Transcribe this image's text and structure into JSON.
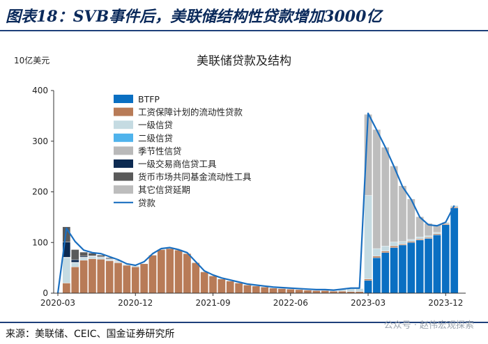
{
  "figure_title": "图表18：SVB事件后，美联储结构性贷款增加3000亿",
  "source": "来源：美联储、CEIC、国金证券研究所",
  "watermark": "公众号 · 赵伟宏观探索",
  "colors": {
    "btfp": "#0a6fc2",
    "ppp": "#b87b57",
    "primary_credit": "#c5dbe2",
    "secondary_credit": "#4fb3ec",
    "seasonal_credit": "#b9b9b9",
    "pdcf": "#0d2b52",
    "mmlf": "#5a5a5a",
    "other_credit_ext": "#bdbdbd",
    "loans_line": "#1a6fc0"
  },
  "chart_data": {
    "type": "area",
    "title": "美联储贷款及结构",
    "ylabel": "10亿美元",
    "ylim": [
      0,
      400
    ],
    "yticks": [
      0,
      100,
      200,
      300,
      400
    ],
    "x_tick_labels": [
      "2020-03",
      "2020-12",
      "2021-09",
      "2022-06",
      "2023-03",
      "2023-12"
    ],
    "legend_position": "top-left",
    "series": [
      {
        "name": "BTFP",
        "key": "btfp"
      },
      {
        "name": "工资保障计划的流动性贷款",
        "key": "ppp"
      },
      {
        "name": "一级信贷",
        "key": "primary_credit"
      },
      {
        "name": "二级信贷",
        "key": "secondary_credit"
      },
      {
        "name": "季节性信贷",
        "key": "seasonal_credit"
      },
      {
        "name": "一级交易商信贷工具",
        "key": "pdcf"
      },
      {
        "name": "货币市场共同基金流动性工具",
        "key": "mmlf"
      },
      {
        "name": "其它信贷延期",
        "key": "other_credit_ext"
      },
      {
        "name": "贷款",
        "key": "loans_line"
      }
    ],
    "months": [
      "2020-03",
      "2020-04",
      "2020-05",
      "2020-06",
      "2020-07",
      "2020-08",
      "2020-09",
      "2020-10",
      "2020-11",
      "2020-12",
      "2021-01",
      "2021-02",
      "2021-03",
      "2021-04",
      "2021-05",
      "2021-06",
      "2021-07",
      "2021-08",
      "2021-09",
      "2021-10",
      "2021-11",
      "2021-12",
      "2022-01",
      "2022-02",
      "2022-03",
      "2022-04",
      "2022-05",
      "2022-06",
      "2022-07",
      "2022-08",
      "2022-09",
      "2022-10",
      "2022-11",
      "2022-12",
      "2023-01",
      "2023-02",
      "2023-03",
      "2023-04",
      "2023-05",
      "2023-06",
      "2023-07",
      "2023-08",
      "2023-09",
      "2023-10",
      "2023-11",
      "2023-12",
      "2024-01"
    ],
    "btfp": [
      0,
      0,
      0,
      0,
      0,
      0,
      0,
      0,
      0,
      0,
      0,
      0,
      0,
      0,
      0,
      0,
      0,
      0,
      0,
      0,
      0,
      0,
      0,
      0,
      0,
      0,
      0,
      0,
      0,
      0,
      0,
      0,
      0,
      0,
      0,
      0,
      25,
      70,
      80,
      90,
      95,
      100,
      105,
      108,
      115,
      135,
      168
    ],
    "ppp": [
      0,
      20,
      52,
      65,
      68,
      67,
      64,
      60,
      55,
      52,
      58,
      75,
      86,
      88,
      85,
      78,
      60,
      42,
      34,
      28,
      24,
      20,
      16,
      14,
      12,
      10,
      9,
      8,
      7,
      6,
      5,
      5,
      4,
      4,
      3,
      3,
      3,
      3,
      3,
      3,
      2,
      2,
      2,
      2,
      2,
      2,
      2
    ],
    "primary_credit": [
      0,
      50,
      8,
      5,
      4,
      3,
      2,
      2,
      2,
      2,
      1,
      1,
      1,
      1,
      1,
      1,
      1,
      1,
      1,
      1,
      1,
      1,
      1,
      1,
      1,
      1,
      1,
      1,
      1,
      1,
      1,
      1,
      1,
      4,
      6,
      6,
      165,
      15,
      10,
      8,
      5,
      4,
      4,
      3,
      3,
      3,
      3
    ],
    "secondary_credit": [
      0,
      0,
      0,
      0,
      0,
      0,
      0,
      0,
      0,
      0,
      0,
      0,
      0,
      0,
      0,
      0,
      0,
      0,
      0,
      0,
      0,
      0,
      0,
      0,
      0,
      0,
      0,
      0,
      0,
      0,
      0,
      0,
      0,
      0,
      0,
      0,
      0,
      0,
      0,
      0,
      0,
      0,
      0,
      0,
      0,
      0,
      0
    ],
    "seasonal_credit": [
      0,
      1,
      1,
      1,
      1,
      1,
      1,
      1,
      0,
      0,
      0,
      0,
      0,
      0,
      0,
      0,
      0,
      0,
      0,
      0,
      0,
      0,
      0,
      0,
      0,
      0,
      0,
      0,
      0,
      0,
      0,
      0,
      0,
      0,
      0,
      0,
      0,
      0,
      0,
      0,
      0,
      0,
      0,
      0,
      0,
      0,
      0
    ],
    "pdcf": [
      0,
      30,
      5,
      2,
      1,
      1,
      1,
      0,
      0,
      0,
      0,
      0,
      0,
      0,
      0,
      0,
      0,
      0,
      0,
      0,
      0,
      0,
      0,
      0,
      0,
      0,
      0,
      0,
      0,
      0,
      0,
      0,
      0,
      0,
      0,
      0,
      0,
      0,
      0,
      0,
      0,
      0,
      0,
      0,
      0,
      0,
      0
    ],
    "mmlf": [
      0,
      30,
      20,
      8,
      5,
      3,
      2,
      1,
      0,
      0,
      0,
      0,
      0,
      0,
      0,
      0,
      0,
      0,
      0,
      0,
      0,
      0,
      0,
      0,
      0,
      0,
      0,
      0,
      0,
      0,
      0,
      0,
      0,
      0,
      0,
      0,
      0,
      0,
      0,
      0,
      0,
      0,
      0,
      0,
      0,
      0,
      0
    ],
    "other_credit_ext": [
      0,
      0,
      0,
      0,
      0,
      0,
      0,
      0,
      0,
      0,
      0,
      0,
      0,
      0,
      0,
      0,
      0,
      0,
      0,
      0,
      0,
      0,
      0,
      0,
      0,
      0,
      0,
      0,
      0,
      0,
      0,
      0,
      0,
      0,
      0,
      0,
      160,
      235,
      195,
      150,
      110,
      80,
      40,
      25,
      15,
      0,
      0
    ],
    "loans_line": [
      0,
      128,
      102,
      85,
      80,
      78,
      72,
      66,
      58,
      55,
      62,
      78,
      88,
      90,
      86,
      80,
      62,
      44,
      36,
      30,
      26,
      22,
      18,
      16,
      14,
      12,
      11,
      10,
      9,
      8,
      7,
      7,
      6,
      8,
      10,
      10,
      355,
      322,
      288,
      250,
      210,
      185,
      150,
      135,
      133,
      140,
      173
    ]
  }
}
